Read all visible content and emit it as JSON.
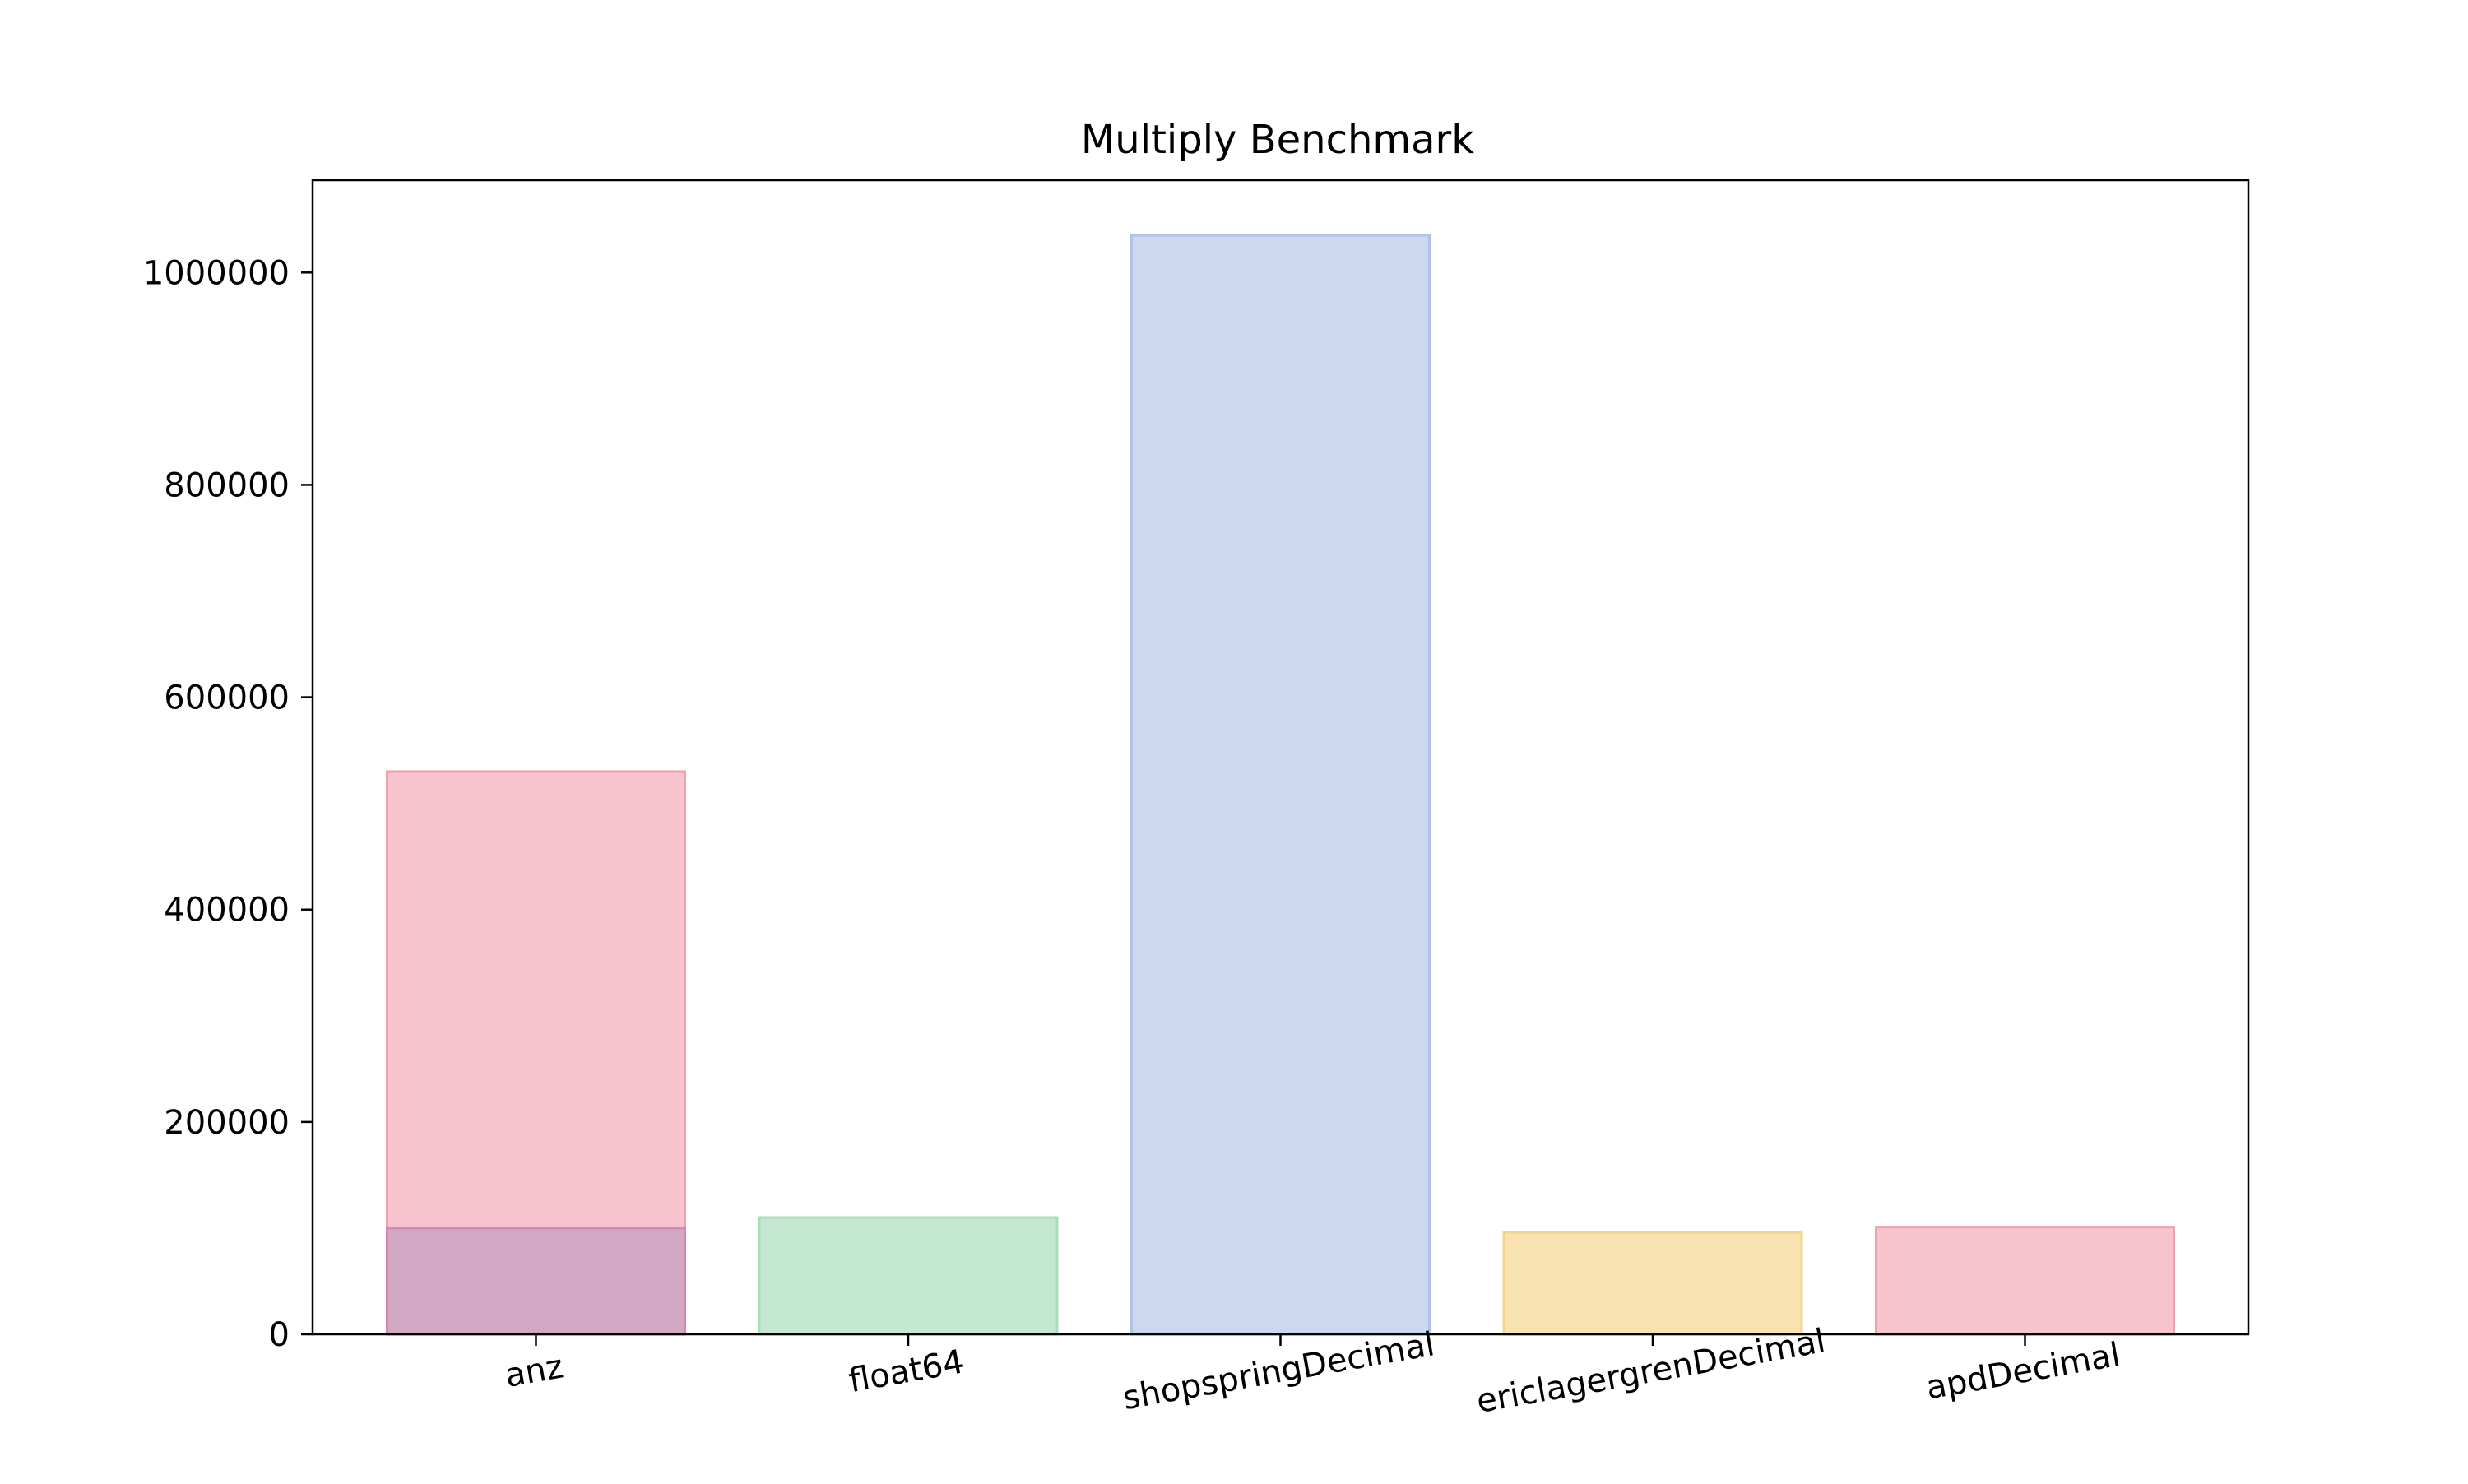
{
  "chart_data": {
    "type": "bar",
    "title": "Multiply Benchmark",
    "xlabel": "",
    "ylabel": "",
    "categories": [
      "anz",
      "float64",
      "shopspringDecimal",
      "ericlagergrenDecimal",
      "apdDecimal"
    ],
    "series": [
      {
        "values": [
          530000,
          110000,
          1035000,
          96000,
          101000
        ],
        "colors": [
          "#f7c3cd",
          "#c5e9d0",
          "#ccd8f0",
          "#f8e3b0",
          "#f7c3cd"
        ],
        "edge_colors": [
          "#f0a0b2",
          "#a8ddb9",
          "#b3c3e8",
          "#f2d48f",
          "#f0a0b2"
        ]
      },
      {
        "values": [
          100000,
          null,
          null,
          null,
          null
        ],
        "colors": [
          "#d3a8c4",
          null,
          null,
          null,
          null
        ],
        "edge_colors": [
          "#d686b4",
          null,
          null,
          null,
          null
        ]
      }
    ],
    "ylim": [
      0,
      1087000
    ],
    "yticks": [
      0,
      200000,
      400000,
      600000,
      800000,
      1000000
    ],
    "ytick_labels": [
      "0",
      "200000",
      "400000",
      "600000",
      "800000",
      "1000000"
    ],
    "xtick_rotation_deg": -10,
    "grid": false,
    "legend": "none"
  }
}
